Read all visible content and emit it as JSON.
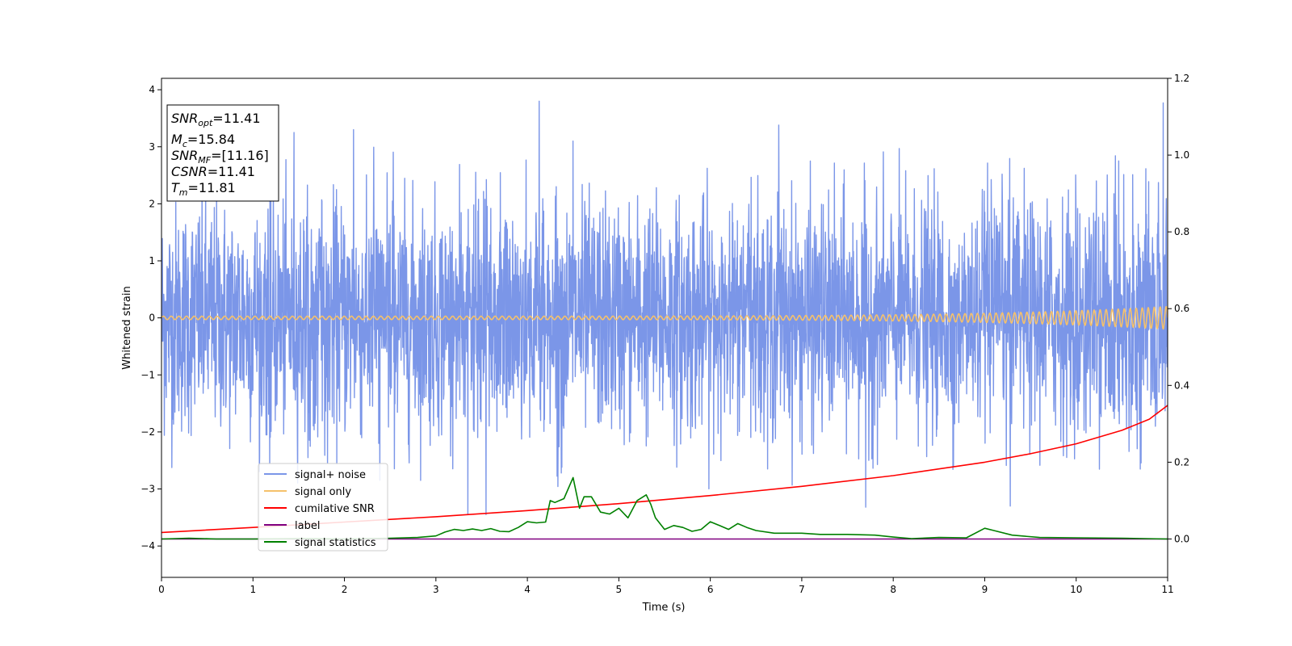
{
  "chart_data": {
    "type": "line",
    "xlabel": "Time (s)",
    "ylabel": "Whitened strain",
    "xlim": [
      0,
      11
    ],
    "ylim": [
      -4.55,
      4.2
    ],
    "y2lim": [
      -0.1,
      1.2
    ],
    "x_ticks": [
      "0",
      "1",
      "2",
      "3",
      "4",
      "5",
      "6",
      "7",
      "8",
      "9",
      "10",
      "11"
    ],
    "y_ticks": [
      "−4",
      "−3",
      "−2",
      "−1",
      "0",
      "1",
      "2",
      "3",
      "4"
    ],
    "y2_ticks": [
      "0.0",
      "0.2",
      "0.4",
      "0.6",
      "0.8",
      "1.0",
      "1.2"
    ],
    "grid": false,
    "legend_position": "lower-left",
    "annotation": {
      "lines": [
        {
          "sym": "SNR",
          "sub": "opt",
          "text": "=11.41"
        },
        {
          "sym": "M",
          "sub": "c",
          "text": "=15.84"
        },
        {
          "sym": "SNR",
          "sub": "MF",
          "text": "=[11.16]"
        },
        {
          "sym": "CSNR",
          "sub": "",
          "text": "=11.41"
        },
        {
          "sym": "T",
          "sub": "m",
          "text": "=11.81"
        }
      ]
    },
    "series": [
      {
        "name": "signal+ noise",
        "axis": "left",
        "color": "#7b96e8",
        "style": "noise",
        "sigma": 1.0,
        "peaks": [
          {
            "x": 1.45,
            "y": 3.25
          },
          {
            "x": 2.1,
            "y": 3.3
          },
          {
            "x": 4.13,
            "y": 3.8
          },
          {
            "x": 4.5,
            "y": 3.1
          },
          {
            "x": 6.75,
            "y": 3.38
          },
          {
            "x": 10.95,
            "y": 3.77
          },
          {
            "x": 3.35,
            "y": -3.45
          },
          {
            "x": 3.55,
            "y": -3.45
          },
          {
            "x": 7.7,
            "y": -3.32
          },
          {
            "x": 9.28,
            "y": -3.3
          }
        ]
      },
      {
        "name": "signal only",
        "axis": "left",
        "color": "#f5c16b",
        "style": "chirp",
        "start_amp": 0.03,
        "end_amp": 0.2,
        "cycles": 130
      },
      {
        "name": "cumilative SNR",
        "axis": "right",
        "color": "#ff0000",
        "x": [
          0,
          1,
          2,
          3,
          4,
          5,
          6,
          7,
          8,
          9,
          9.5,
          10,
          10.5,
          10.8,
          11
        ],
        "values": [
          0.017,
          0.03,
          0.044,
          0.058,
          0.074,
          0.092,
          0.113,
          0.137,
          0.165,
          0.2,
          0.222,
          0.248,
          0.283,
          0.312,
          0.348
        ]
      },
      {
        "name": "label",
        "axis": "right",
        "color": "#800080",
        "x": [
          0,
          11
        ],
        "values": [
          0.0,
          0.0
        ]
      },
      {
        "name": "signal statistics",
        "axis": "right",
        "color": "#008000",
        "x": [
          0,
          0.3,
          0.6,
          1.0,
          1.5,
          2.0,
          2.5,
          2.8,
          3.0,
          3.1,
          3.2,
          3.3,
          3.4,
          3.5,
          3.6,
          3.7,
          3.8,
          3.9,
          4.0,
          4.1,
          4.2,
          4.25,
          4.3,
          4.4,
          4.5,
          4.57,
          4.62,
          4.7,
          4.8,
          4.9,
          5.0,
          5.1,
          5.2,
          5.3,
          5.35,
          5.4,
          5.5,
          5.6,
          5.7,
          5.8,
          5.9,
          6.0,
          6.1,
          6.2,
          6.3,
          6.4,
          6.5,
          6.7,
          7.0,
          7.2,
          7.5,
          7.8,
          8.0,
          8.2,
          8.5,
          8.8,
          9.0,
          9.1,
          9.3,
          9.6,
          10.0,
          10.5,
          11.0
        ],
        "values": [
          0.0,
          0.002,
          0.0,
          0.0,
          0.001,
          0.0,
          0.002,
          0.004,
          0.008,
          0.018,
          0.025,
          0.022,
          0.026,
          0.022,
          0.027,
          0.02,
          0.019,
          0.03,
          0.045,
          0.042,
          0.044,
          0.1,
          0.095,
          0.105,
          0.16,
          0.08,
          0.11,
          0.11,
          0.07,
          0.065,
          0.08,
          0.055,
          0.1,
          0.115,
          0.09,
          0.055,
          0.025,
          0.035,
          0.03,
          0.02,
          0.025,
          0.045,
          0.035,
          0.025,
          0.04,
          0.03,
          0.022,
          0.015,
          0.015,
          0.012,
          0.012,
          0.01,
          0.005,
          0.001,
          0.004,
          0.003,
          0.028,
          0.022,
          0.01,
          0.004,
          0.003,
          0.002,
          0.0
        ]
      }
    ]
  }
}
